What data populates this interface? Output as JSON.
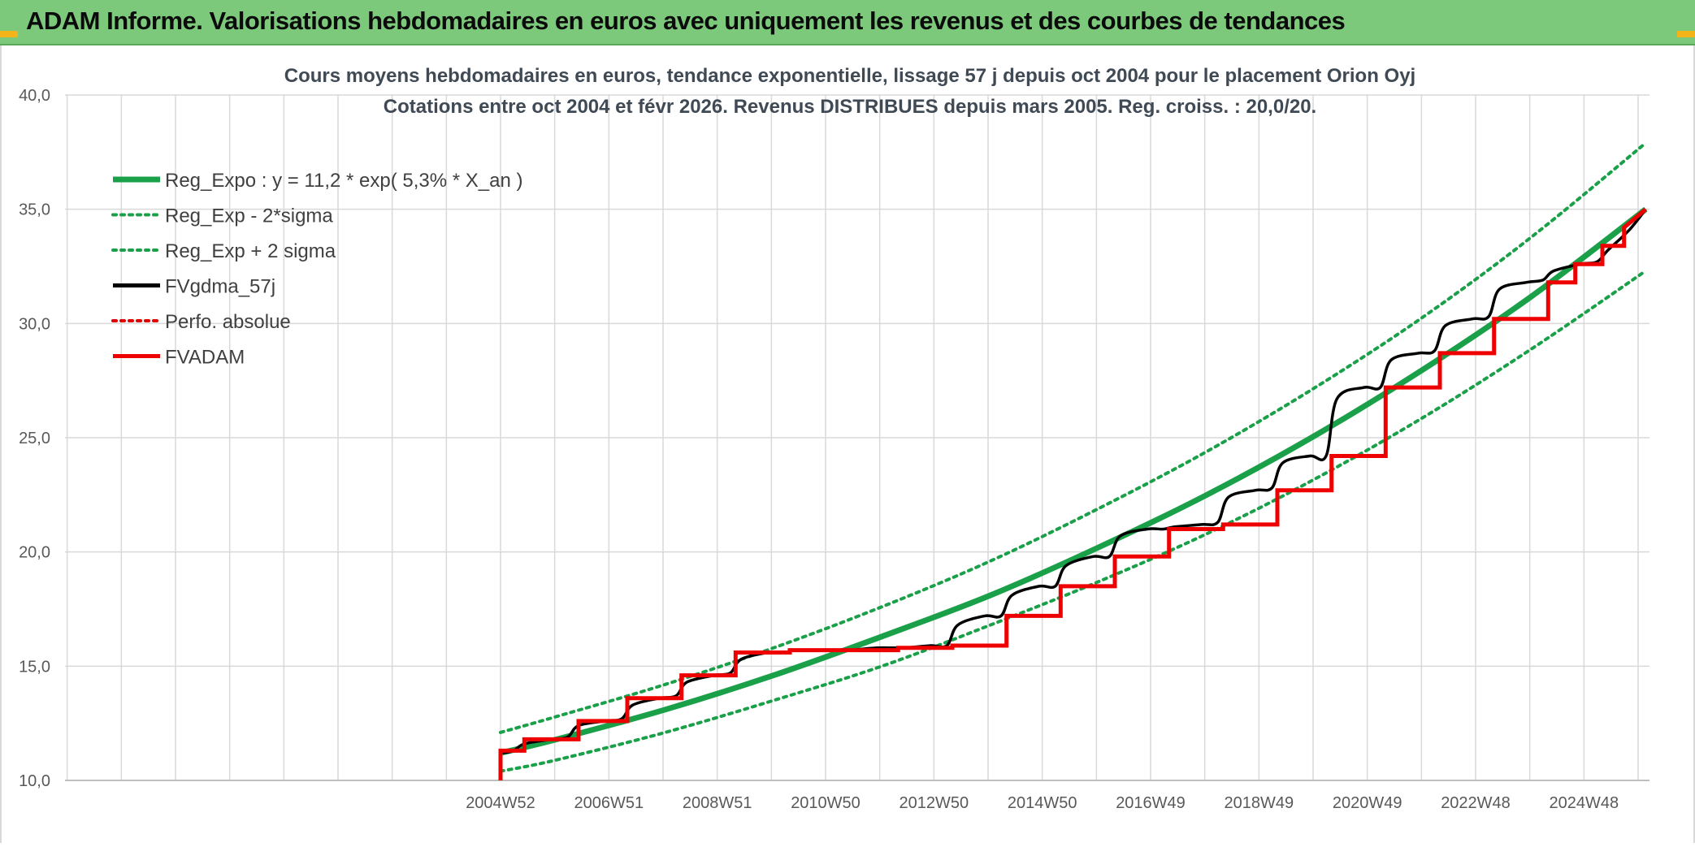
{
  "header": {
    "title": "ADAM Informe. Valorisations hebdomadaires en euros avec uniquement les revenus et des courbes de tendances",
    "background": "#7dc97b"
  },
  "chart_data": {
    "type": "line",
    "title_lines": [
      "Cours moyens hebdomadaires en euros, tendance exponentielle, lissage 57 j depuis oct 2004 pour le placement Orion Oyj",
      "Cotations entre oct 2004 et févr 2026. Revenus DISTRIBUES depuis mars 2005. Reg. croiss. : 20,0/20."
    ],
    "xlabel": "",
    "ylabel": "",
    "ylim": [
      10,
      40
    ],
    "yticks": [
      10,
      15,
      20,
      25,
      30,
      35,
      40
    ],
    "ytick_labels": [
      "10,0",
      "15,0",
      "20,0",
      "25,0",
      "30,0",
      "35,0",
      "40,0"
    ],
    "xticks": [
      2004.96,
      2006.96,
      2008.96,
      2010.96,
      2012.96,
      2014.96,
      2016.96,
      2018.96,
      2020.96,
      2022.96,
      2024.96
    ],
    "xtick_labels": [
      "2004W52",
      "2006W51",
      "2008W51",
      "2010W50",
      "2012W50",
      "2014W50",
      "2016W49",
      "2018W49",
      "2020W49",
      "2022W48",
      "2024W48"
    ],
    "xlim": [
      1996.92,
      2026.17
    ],
    "grid": true,
    "legend_position": "top-left",
    "series": [
      {
        "name": "Reg_Expo : y = 11,2 * exp( 5,3% *  X_an )",
        "color": "#1aa049",
        "style": "solid-thick",
        "x": [
          2004.96,
          2006,
          2008,
          2010,
          2012,
          2014,
          2016,
          2018,
          2020,
          2022,
          2024,
          2026.1
        ],
        "values": [
          11.2,
          11.8,
          13.1,
          14.6,
          16.3,
          18.1,
          20.2,
          22.5,
          25.1,
          28.0,
          31.2,
          35.0
        ]
      },
      {
        "name": "Reg_Exp - 2*sigma",
        "color": "#1aa049",
        "style": "dotted",
        "x": [
          2004.96,
          2006,
          2008,
          2010,
          2012,
          2014,
          2016,
          2018,
          2020,
          2022,
          2024,
          2026.1
        ],
        "values": [
          10.4,
          10.9,
          12.1,
          13.5,
          15.0,
          16.8,
          18.7,
          20.8,
          23.2,
          25.9,
          28.9,
          32.3
        ]
      },
      {
        "name": "Reg_Exp + 2 sigma",
        "color": "#1aa049",
        "style": "dotted",
        "x": [
          2004.96,
          2006,
          2008,
          2010,
          2012,
          2014,
          2016,
          2018,
          2020,
          2022,
          2024,
          2026.1
        ],
        "values": [
          12.1,
          12.8,
          14.2,
          15.8,
          17.6,
          19.6,
          21.9,
          24.4,
          27.2,
          30.3,
          33.8,
          37.9
        ]
      },
      {
        "name": "FVgdma_57j",
        "color": "#000000",
        "style": "solid",
        "x": [
          2005.0,
          2005.2,
          2005.4,
          2005.9,
          2006.2,
          2006.4,
          2006.9,
          2007.2,
          2007.4,
          2007.9,
          2008.2,
          2008.4,
          2008.9,
          2009.2,
          2009.4,
          2009.9,
          2010.2,
          2010.4,
          2010.9,
          2011.2,
          2011.4,
          2011.9,
          2012.2,
          2012.4,
          2012.9,
          2013.2,
          2013.4,
          2013.9,
          2014.2,
          2014.4,
          2014.9,
          2015.2,
          2015.4,
          2015.9,
          2016.2,
          2016.4,
          2016.9,
          2017.2,
          2017.4,
          2017.9,
          2018.2,
          2018.4,
          2018.9,
          2019.2,
          2019.4,
          2019.9,
          2020.2,
          2020.4,
          2020.9,
          2021.2,
          2021.4,
          2021.9,
          2022.2,
          2022.4,
          2022.9,
          2023.2,
          2023.4,
          2023.9,
          2024.2,
          2024.4,
          2024.9,
          2025.2,
          2025.4,
          2025.8,
          2026.1
        ],
        "values": [
          11.2,
          11.3,
          11.6,
          11.8,
          11.9,
          12.4,
          12.6,
          12.7,
          13.3,
          13.6,
          13.7,
          14.3,
          14.6,
          14.7,
          15.3,
          15.6,
          15.6,
          15.7,
          15.7,
          15.7,
          15.7,
          15.8,
          15.8,
          15.8,
          15.9,
          15.9,
          16.8,
          17.2,
          17.2,
          18.1,
          18.5,
          18.5,
          19.4,
          19.8,
          19.8,
          20.7,
          21.0,
          21.0,
          21.1,
          21.2,
          21.3,
          22.4,
          22.7,
          22.8,
          23.9,
          24.2,
          24.2,
          26.7,
          27.2,
          27.2,
          28.4,
          28.7,
          28.8,
          29.9,
          30.2,
          30.3,
          31.5,
          31.8,
          31.9,
          32.3,
          32.6,
          32.7,
          33.2,
          34.1,
          35.0
        ]
      },
      {
        "name": "Perfo. absolue",
        "color": "#e00000",
        "style": "dotted",
        "x": [],
        "values": []
      },
      {
        "name": "FVADAM",
        "color": "#ee0000",
        "style": "step-thick",
        "x": [
          2004.96,
          2004.96,
          2005.4,
          2005.4,
          2006.4,
          2006.4,
          2007.3,
          2007.3,
          2008.3,
          2008.3,
          2009.3,
          2009.3,
          2010.3,
          2010.3,
          2011.3,
          2011.3,
          2012.3,
          2012.3,
          2013.3,
          2013.3,
          2014.3,
          2014.3,
          2015.3,
          2015.3,
          2016.3,
          2016.3,
          2017.3,
          2017.3,
          2018.3,
          2018.3,
          2019.3,
          2019.3,
          2020.3,
          2020.3,
          2021.3,
          2021.3,
          2022.3,
          2022.3,
          2023.3,
          2023.3,
          2024.3,
          2024.3,
          2024.8,
          2024.8,
          2025.3,
          2025.3,
          2025.7,
          2025.7,
          2026.1
        ],
        "values": [
          10.0,
          11.3,
          11.3,
          11.8,
          11.8,
          12.6,
          12.6,
          13.6,
          13.6,
          14.6,
          14.6,
          15.6,
          15.6,
          15.7,
          15.7,
          15.7,
          15.7,
          15.8,
          15.8,
          15.9,
          15.9,
          17.2,
          17.2,
          18.5,
          18.5,
          19.8,
          19.8,
          21.0,
          21.0,
          21.2,
          21.2,
          22.7,
          22.7,
          24.2,
          24.2,
          27.2,
          27.2,
          28.7,
          28.7,
          30.2,
          30.2,
          31.8,
          31.8,
          32.6,
          32.6,
          33.4,
          33.4,
          34.2,
          35.0
        ]
      }
    ]
  }
}
